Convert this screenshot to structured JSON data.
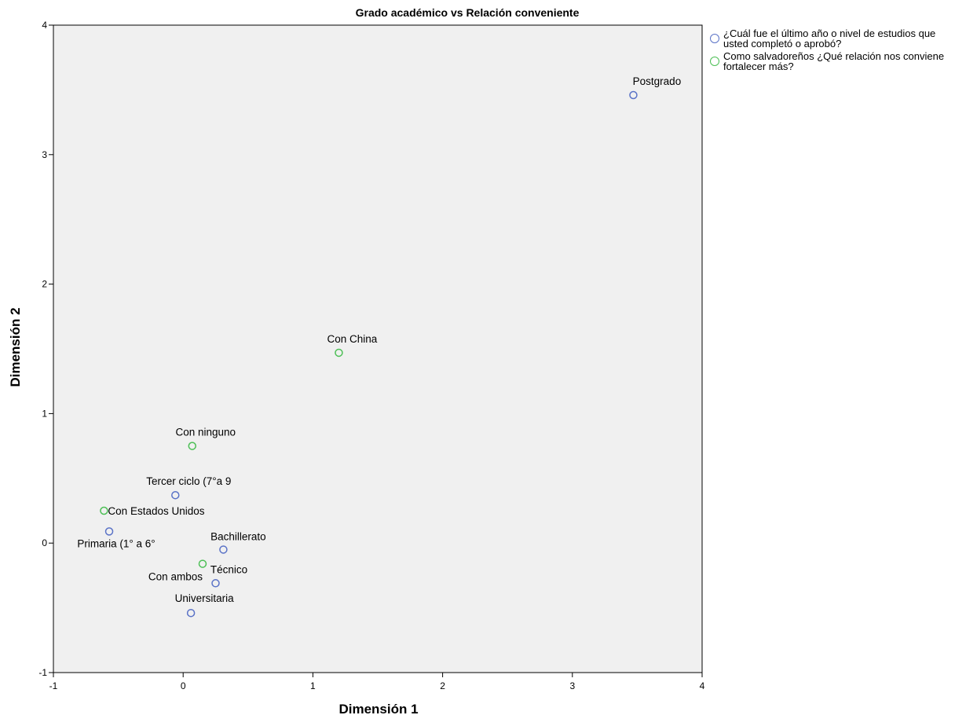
{
  "chart_data": {
    "type": "scatter",
    "title": "Grado académico vs Relación conveniente",
    "xlabel": "Dimensión 1",
    "ylabel": "Dimensión 2",
    "xlim": [
      -1,
      4
    ],
    "ylim": [
      -1,
      4
    ],
    "xticks": [
      "-1",
      "0",
      "1",
      "2",
      "3",
      "4"
    ],
    "yticks": [
      "-1",
      "0",
      "1",
      "2",
      "3",
      "4"
    ],
    "grid": false,
    "legend_position": "top-right outside",
    "series": [
      {
        "name": "¿Cuál fue el último año o nivel de estudios que usted completó o aprobó?",
        "color": "#5b73c7",
        "points": [
          {
            "label": "Postgrado",
            "x": 3.47,
            "y": 3.46
          },
          {
            "label": "Tercer ciclo (7°a 9",
            "x": -0.06,
            "y": 0.37
          },
          {
            "label": "Primaria (1° a 6°",
            "x": -0.57,
            "y": 0.09
          },
          {
            "label": "Bachillerato",
            "x": 0.31,
            "y": -0.05
          },
          {
            "label": "Técnico",
            "x": 0.25,
            "y": -0.31
          },
          {
            "label": "Universitaria",
            "x": 0.06,
            "y": -0.54
          }
        ]
      },
      {
        "name": "Como salvadoreños ¿Qué relación nos conviene fortalecer más?",
        "color": "#4cbf55",
        "points": [
          {
            "label": "Con China",
            "x": 1.2,
            "y": 1.47
          },
          {
            "label": "Con ninguno",
            "x": 0.07,
            "y": 0.75
          },
          {
            "label": "Con Estados Unidos",
            "x": -0.61,
            "y": 0.25
          },
          {
            "label": "Con ambos",
            "x": 0.15,
            "y": -0.16
          }
        ]
      }
    ]
  }
}
